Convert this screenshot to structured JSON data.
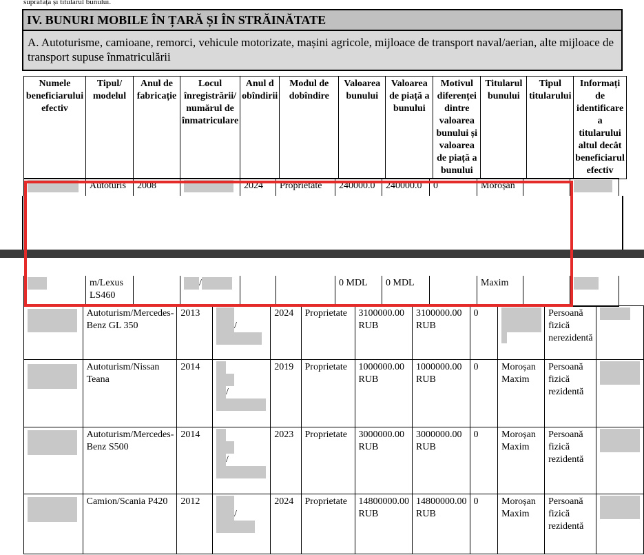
{
  "top_note": "suprafața și titularul bunului.",
  "section": {
    "title": "IV. BUNURI MOBILE ÎN ȚARĂ ȘI ÎN STRĂINĂTATE",
    "subtitle": "A. Autoturisme, camioane, remorci, vehicule motorizate, mașini agricole, mijloace de transport naval/aerian, alte mijloace de transport supuse înmatriculării"
  },
  "columns": [
    "Numele beneficiarului efectiv",
    "Tipul/ modelul",
    "Anul de fabricație",
    "Locul înregistrării/ numărul de înmatriculare",
    "Anul d obîndirii",
    "Modul de dobîndire",
    "Valoarea bunului",
    "Valoarea de piață a bunului",
    "Motivul diferenței dintre valoarea bunului și valoarea de piață a bunului",
    "Titularul bunului",
    "Tipul titularului",
    "Informați de identificare a titularului altul decât beneficiarul efectiv"
  ],
  "row1_top": {
    "model": "Autoturis",
    "year": "2008",
    "acq_year": "2024",
    "mode": "Proprietate",
    "value": "240000.0",
    "market": "240000.0",
    "reason": "0",
    "holder": "Moroșan"
  },
  "row1_bottom": {
    "model": "m/Lexus LS460",
    "reg_sep": "/",
    "value": "0 MDL",
    "market": "0 MDL",
    "holder": "Maxim"
  },
  "rows": [
    {
      "model": "Autoturism/Mercedes-Benz GL 350",
      "year": "2013",
      "reg_sep": "/",
      "acq_year": "2024",
      "mode": "Proprietate",
      "value": "3100000.00 RUB",
      "market": "3100000.00 RUB",
      "reason": "0",
      "holder": "",
      "holder_type": "Persoană fizică nerezidentă"
    },
    {
      "model": "Autoturism/Nissan Teana",
      "year": "2014",
      "reg_sep": "/",
      "acq_year": "2019",
      "mode": "Proprietate",
      "value": "1000000.00 RUB",
      "market": "1000000.00 RUB",
      "reason": "0",
      "holder": "Moroșan Maxim",
      "holder_type": "Persoană fizică rezidentă"
    },
    {
      "model": "Autoturism/Mercedes-Benz S500",
      "year": "2014",
      "reg_sep": "/",
      "acq_year": "2023",
      "mode": "Proprietate",
      "value": "3000000.00 RUB",
      "market": "3000000.00 RUB",
      "reason": "0",
      "holder": "Moroșan Maxim",
      "holder_type": "Persoană fizică rezidentă"
    },
    {
      "model": "Camion/Scania P420",
      "year": "2012",
      "reg_sep": "/",
      "acq_year": "2024",
      "mode": "Proprietate",
      "value": "14800000.00 RUB",
      "market": "14800000.00 RUB",
      "reason": "0",
      "holder": "Moroșan Maxim",
      "holder_type": "Persoană fizică rezidentă"
    }
  ],
  "colors": {
    "header_bg": "#c0c0c0",
    "subheader_bg": "#d9d9d9",
    "highlight": "#e52a2a",
    "redaction": "#c8c8c8"
  }
}
